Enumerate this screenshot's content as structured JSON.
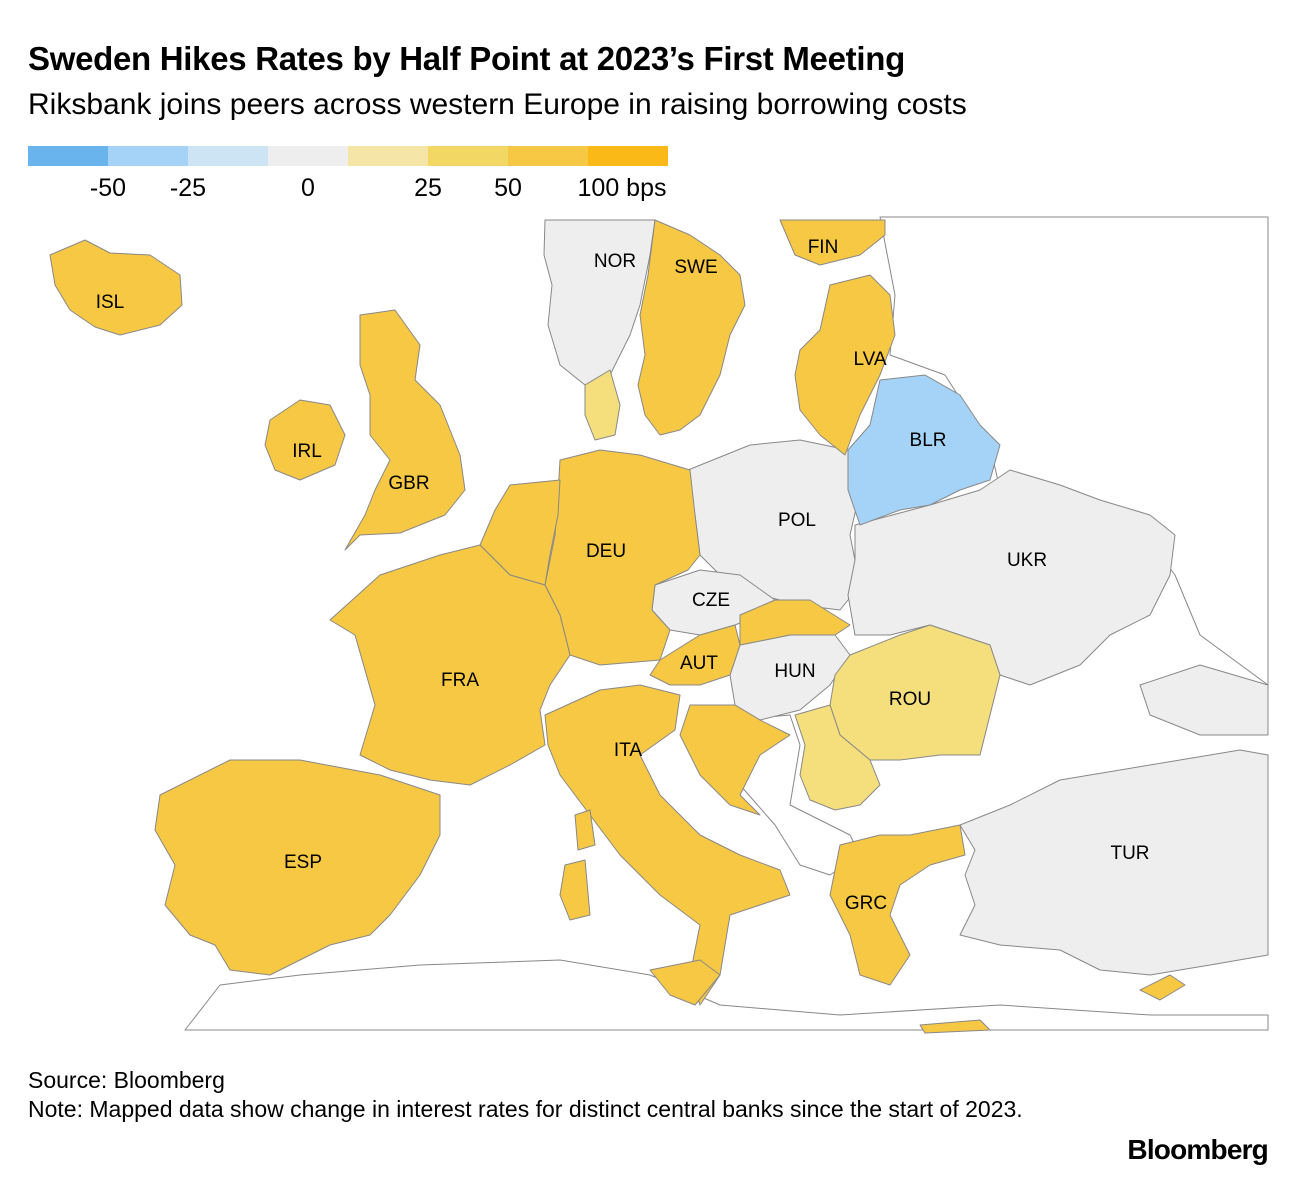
{
  "title": "Sweden Hikes Rates by Half Point at 2023’s First Meeting",
  "subtitle": "Riksbank joins peers across western Europe in raising borrowing costs",
  "legend": {
    "colors": [
      "#6ab4ee",
      "#a5d3f7",
      "#cde4f4",
      "#eeeeee",
      "#f5e5a7",
      "#f3d764",
      "#f7c843",
      "#fbb917"
    ],
    "ticks": [
      "-50",
      "-25",
      "0",
      "25",
      "50",
      "100 bps"
    ]
  },
  "colors": {
    "hike_50": "#f7c843",
    "hike_25": "#f5df7c",
    "no_change": "#eeeeee",
    "cut_25": "#a5d3f7",
    "border": "#888888"
  },
  "countries": {
    "ISL": "ISL",
    "NOR": "NOR",
    "SWE": "SWE",
    "FIN": "FIN",
    "LVA": "LVA",
    "IRL": "IRL",
    "GBR": "GBR",
    "BLR": "BLR",
    "POL": "POL",
    "DEU": "DEU",
    "UKR": "UKR",
    "CZE": "CZE",
    "FRA": "FRA",
    "AUT": "AUT",
    "HUN": "HUN",
    "ROU": "ROU",
    "ITA": "ITA",
    "TUR": "TUR",
    "ESP": "ESP",
    "GRC": "GRC"
  },
  "footer": {
    "source": "Source: Bloomberg",
    "note": "Note: Mapped data show change in interest rates for distinct central banks since the start of 2023."
  },
  "brand": "Bloomberg"
}
